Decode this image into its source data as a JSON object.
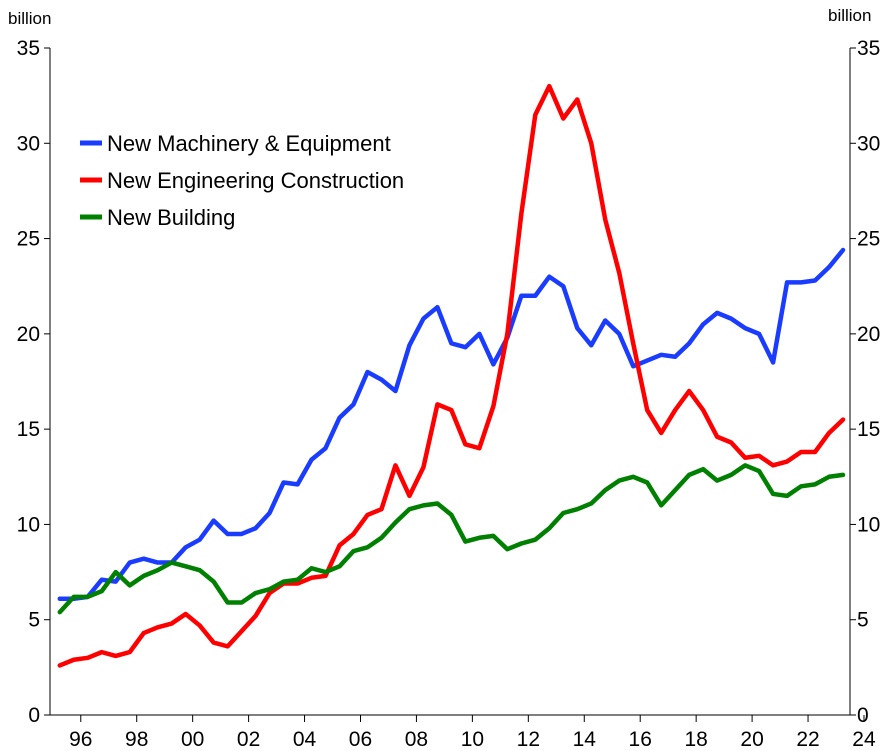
{
  "chart_data": {
    "type": "line",
    "y_unit_left": "billion",
    "y_unit_right": "billion",
    "legend": "upper left",
    "xlim": [
      1994.9,
      2023.5
    ],
    "xticks": [
      {
        "value": 1996,
        "label": "96"
      },
      {
        "value": 1998,
        "label": "98"
      },
      {
        "value": 2000,
        "label": "00"
      },
      {
        "value": 2002,
        "label": "02"
      },
      {
        "value": 2004,
        "label": "04"
      },
      {
        "value": 2006,
        "label": "06"
      },
      {
        "value": 2008,
        "label": "08"
      },
      {
        "value": 2010,
        "label": "10"
      },
      {
        "value": 2012,
        "label": "12"
      },
      {
        "value": 2014,
        "label": "14"
      },
      {
        "value": 2016,
        "label": "16"
      },
      {
        "value": 2018,
        "label": "18"
      },
      {
        "value": 2020,
        "label": "20"
      },
      {
        "value": 2022,
        "label": "22"
      },
      {
        "value": 2024,
        "label": "24"
      }
    ],
    "ylim": [
      0,
      35
    ],
    "yticks": [
      0,
      5,
      10,
      15,
      20,
      25,
      30,
      35
    ],
    "y2lim": [
      0,
      35
    ],
    "y2ticks": [
      0,
      5,
      10,
      15,
      20,
      25,
      30,
      35
    ],
    "x": [
      1995.25,
      1995.75,
      1996.25,
      1996.75,
      1997.25,
      1997.75,
      1998.25,
      1998.75,
      1999.25,
      1999.75,
      2000.25,
      2000.75,
      2001.25,
      2001.75,
      2002.25,
      2002.75,
      2003.25,
      2003.75,
      2004.25,
      2004.75,
      2005.25,
      2005.75,
      2006.25,
      2006.75,
      2007.25,
      2007.75,
      2008.25,
      2008.75,
      2009.25,
      2009.75,
      2010.25,
      2010.75,
      2011.25,
      2011.75,
      2012.25,
      2012.75,
      2013.25,
      2013.75,
      2014.25,
      2014.75,
      2015.25,
      2015.75,
      2016.25,
      2016.75,
      2017.25,
      2017.75,
      2018.25,
      2018.75,
      2019.25,
      2019.75,
      2020.25,
      2020.75,
      2021.25,
      2021.75,
      2022.25,
      2022.75,
      2023.25
    ],
    "series": [
      {
        "name": "New Machinery & Equipment",
        "color": "#1a3cff",
        "values": [
          6.1,
          6.1,
          6.2,
          7.1,
          7.0,
          8.0,
          8.2,
          8.0,
          8.0,
          8.8,
          9.2,
          10.2,
          9.5,
          9.5,
          9.8,
          10.6,
          12.2,
          12.1,
          13.4,
          14.0,
          15.6,
          16.3,
          18.0,
          17.6,
          17.0,
          19.4,
          20.8,
          21.4,
          19.5,
          19.3,
          20.0,
          18.4,
          19.8,
          22.0,
          22.0,
          23.0,
          22.5,
          20.3,
          19.4,
          20.7,
          20.0,
          18.3,
          18.6,
          18.9,
          18.8,
          19.5,
          20.5,
          21.1,
          20.8,
          20.3,
          20.0,
          18.5,
          22.7,
          22.7,
          22.8,
          23.5,
          24.4
        ]
      },
      {
        "name": "New Engineering Construction",
        "color": "#ff0000",
        "values": [
          2.6,
          2.9,
          3.0,
          3.3,
          3.1,
          3.3,
          4.3,
          4.6,
          4.8,
          5.3,
          4.7,
          3.8,
          3.6,
          4.4,
          5.2,
          6.4,
          6.9,
          6.9,
          7.2,
          7.3,
          8.9,
          9.5,
          10.5,
          10.8,
          13.1,
          11.5,
          13.0,
          16.3,
          16.0,
          14.2,
          14.0,
          16.2,
          20.0,
          26.3,
          31.5,
          33.0,
          31.3,
          32.3,
          30.0,
          26.0,
          23.2,
          19.5,
          16.0,
          14.8,
          16.0,
          17.0,
          16.0,
          14.6,
          14.3,
          13.5,
          13.6,
          13.1,
          13.3,
          13.8,
          13.8,
          14.8,
          15.5
        ]
      },
      {
        "name": "New Building",
        "color": "#008000",
        "values": [
          5.4,
          6.2,
          6.2,
          6.5,
          7.5,
          6.8,
          7.3,
          7.6,
          8.0,
          7.8,
          7.6,
          7.0,
          5.9,
          5.9,
          6.4,
          6.6,
          7.0,
          7.1,
          7.7,
          7.5,
          7.8,
          8.6,
          8.8,
          9.3,
          10.1,
          10.8,
          11.0,
          11.1,
          10.5,
          9.1,
          9.3,
          9.4,
          8.7,
          9.0,
          9.2,
          9.8,
          10.6,
          10.8,
          11.1,
          11.8,
          12.3,
          12.5,
          12.2,
          11.0,
          11.8,
          12.6,
          12.9,
          12.3,
          12.6,
          13.1,
          12.8,
          11.6,
          11.5,
          12.0,
          12.1,
          12.5,
          12.6
        ]
      }
    ]
  }
}
